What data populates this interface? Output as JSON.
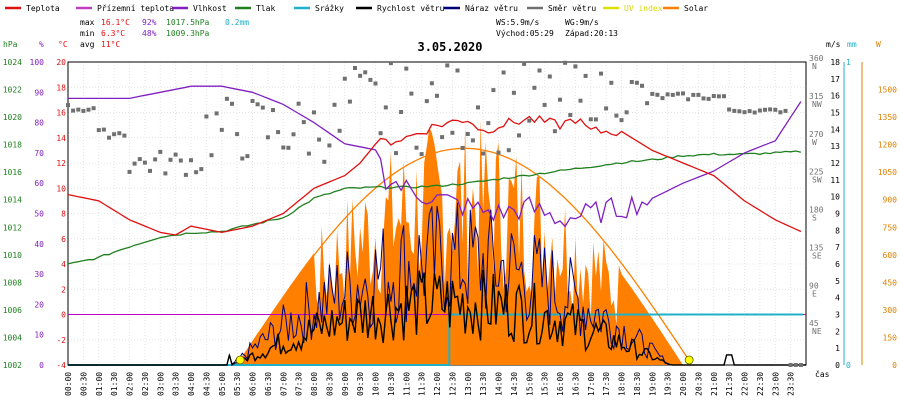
{
  "chart_data": {
    "type": "line",
    "title": "3.05.2020",
    "x_unit_label": "čas",
    "x_ticks": [
      "00:00",
      "00:30",
      "01:00",
      "01:30",
      "02:00",
      "02:30",
      "03:00",
      "03:30",
      "04:00",
      "04:30",
      "05:00",
      "05:30",
      "06:00",
      "06:30",
      "07:00",
      "07:30",
      "08:00",
      "08:30",
      "09:00",
      "09:30",
      "10:00",
      "10:30",
      "11:00",
      "11:30",
      "12:00",
      "12:30",
      "13:00",
      "13:30",
      "14:00",
      "14:30",
      "15:00",
      "15:30",
      "16:00",
      "16:30",
      "17:00",
      "17:30",
      "18:00",
      "18:30",
      "19:00",
      "19:30",
      "20:00",
      "20:30",
      "21:00",
      "21:30",
      "22:00",
      "22:30",
      "23:00",
      "23:30"
    ],
    "legend": [
      {
        "name": "Teplota",
        "color": "#e01010"
      },
      {
        "name": "Přízemní teplota",
        "color": "#c040c0"
      },
      {
        "name": "Vlhkost",
        "color": "#8020c0"
      },
      {
        "name": "Tlak",
        "color": "#208020"
      },
      {
        "name": "Srážky",
        "color": "#20b0c8"
      },
      {
        "name": "Rychlost větru",
        "color": "#000000"
      },
      {
        "name": "Náraz větru",
        "color": "#00007a"
      },
      {
        "name": "Směr větru",
        "color": "#707070"
      },
      {
        "name": "UV index",
        "color": "#e0e000"
      },
      {
        "name": "Solar",
        "color": "#ff8000"
      }
    ],
    "stats": {
      "max": {
        "label": "max",
        "temp": "16.1°C",
        "hum": "92%",
        "press": "1017.5hPa",
        "rain": "0.2mm"
      },
      "min": {
        "label": "min",
        "temp": "6.3°C",
        "hum": "48%",
        "press": "1009.3hPa"
      },
      "avg": {
        "label": "avg",
        "temp": "11°C"
      }
    },
    "wind_info": {
      "ws": "WS:5.9m/s",
      "wg": "WG:9m/s",
      "sunrise": "Východ:05:29",
      "sunset": "Západ:20:13"
    },
    "axes": {
      "hpa": {
        "title": "hPa",
        "ticks": [
          "1024",
          "1022",
          "1020",
          "1018",
          "1016",
          "1014",
          "1012",
          "1010",
          "1008",
          "1006",
          "1004",
          "1002"
        ]
      },
      "pct": {
        "title": "%",
        "ticks": [
          "100",
          "90",
          "80",
          "70",
          "60",
          "50",
          "40",
          "30",
          "20",
          "10",
          "0"
        ]
      },
      "celsius": {
        "title": "°C",
        "ticks": [
          "20",
          "18",
          "16",
          "14",
          "12",
          "10",
          "8",
          "6",
          "4",
          "2",
          "0",
          "-2",
          "-4"
        ]
      },
      "deg": {
        "ticks": [
          "360",
          "315",
          "270",
          "225",
          "180",
          "135",
          "90",
          "45"
        ]
      },
      "dir": {
        "ticks": [
          "N",
          "NW",
          "W",
          "SW",
          "S",
          "SE",
          "E",
          "NE"
        ]
      },
      "ms": {
        "title": "m/s",
        "ticks": [
          "18",
          "17",
          "16",
          "15",
          "14",
          "13",
          "12",
          "11",
          "10",
          "9",
          "8",
          "7",
          "6",
          "5",
          "4",
          "3",
          "2",
          "1",
          "0"
        ]
      },
      "mm": {
        "title": "mm",
        "ticks": [
          "1",
          "0"
        ]
      },
      "w": {
        "title": "W",
        "ticks": [
          "1500",
          "1350",
          "1200",
          "1050",
          "900",
          "750",
          "600",
          "450",
          "300",
          "150",
          "0"
        ]
      }
    },
    "ranges": {
      "temp": [
        -4,
        20
      ],
      "hum": [
        0,
        100
      ],
      "press": [
        1002,
        1024
      ],
      "wind": [
        0,
        18
      ],
      "dir": [
        0,
        360
      ],
      "solar": [
        0,
        1650
      ]
    },
    "series": {
      "temp_hours": [
        0,
        1,
        2,
        3,
        3.5,
        4,
        5,
        6,
        7,
        8,
        9,
        9.5,
        10,
        11,
        12,
        13,
        13.5,
        14,
        15,
        16,
        16.5,
        17,
        18,
        19,
        20,
        21,
        22,
        23,
        23.9
      ],
      "temp_values": [
        9.5,
        9,
        7.5,
        6.5,
        6.3,
        7,
        6.5,
        7,
        8,
        10,
        11,
        12,
        13.5,
        14,
        15,
        15.5,
        14.5,
        15,
        15.5,
        15,
        15.5,
        14.5,
        14.5,
        13,
        12,
        11,
        9,
        7.5,
        6.5
      ],
      "hum_hours": [
        0,
        1,
        2,
        3,
        4,
        5,
        6,
        7,
        8,
        9,
        10,
        10.3,
        11,
        12,
        13,
        14,
        15,
        16,
        17,
        18,
        19,
        20,
        21,
        22,
        23,
        23.9
      ],
      "hum_values": [
        88,
        88,
        88,
        90,
        92,
        92,
        90,
        86,
        80,
        73,
        71,
        62,
        58,
        55,
        52,
        50,
        52,
        48,
        50,
        52,
        55,
        60,
        64,
        70,
        74,
        88
      ],
      "press_hours": [
        0,
        1,
        2,
        3,
        4,
        5,
        6,
        7,
        8,
        9,
        10,
        11,
        12,
        13,
        14,
        15,
        16,
        17,
        18,
        19,
        20,
        21,
        22,
        23,
        23.9
      ],
      "press_values": [
        1009.3,
        1009.8,
        1010.6,
        1011.3,
        1011.6,
        1011.7,
        1012.2,
        1012.7,
        1014.1,
        1014.8,
        1014.9,
        1014.9,
        1015,
        1015.2,
        1015.5,
        1015.8,
        1016.1,
        1016.4,
        1016.7,
        1016.9,
        1017.2,
        1017.3,
        1017.3,
        1017.4,
        1017.5
      ],
      "rain_hours": [
        0,
        12.4,
        12.4,
        23.9
      ],
      "rain_values": [
        0,
        0,
        0.2,
        0.2
      ],
      "solar_peak_w": 1180,
      "solar_max_w": 1400,
      "wind_gust_peak": 9,
      "wind_speed_peak": 5.9,
      "uv_points": [
        {
          "hour": 5.6,
          "value": 0
        },
        {
          "hour": 20.2,
          "value": 0
        }
      ]
    }
  }
}
